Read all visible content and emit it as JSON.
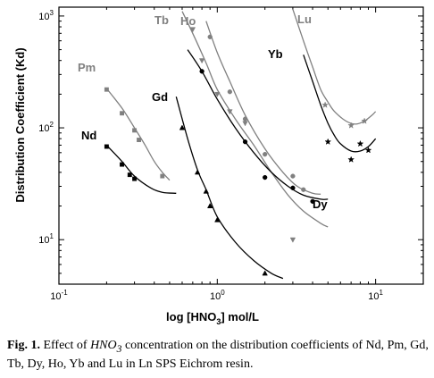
{
  "chart_data": {
    "type": "scatter",
    "xlabel_main": "log  [HNO",
    "xlabel_sub": "3",
    "xlabel_tail": "]     mol/L",
    "ylabel": "Distribution Coefficient  (Kd)",
    "x_scale": "log",
    "y_scale": "log",
    "xlim": [
      0.1,
      20
    ],
    "ylim": [
      4,
      1200
    ],
    "grid": false,
    "x_ticks": [
      {
        "value": 0.1,
        "base": "10",
        "exp": "-1"
      },
      {
        "value": 1,
        "base": "10",
        "exp": "0"
      },
      {
        "value": 10,
        "base": "10",
        "exp": "1"
      }
    ],
    "y_ticks": [
      {
        "value": 10,
        "base": "10",
        "exp": "1"
      },
      {
        "value": 100,
        "base": "10",
        "exp": "2"
      },
      {
        "value": 1000,
        "base": "10",
        "exp": "3"
      }
    ],
    "series": [
      {
        "name": "Nd",
        "color": "#000000",
        "marker": "square",
        "points": [
          [
            0.2,
            68
          ],
          [
            0.25,
            47
          ],
          [
            0.28,
            38
          ],
          [
            0.3,
            35
          ]
        ],
        "curve": [
          [
            0.2,
            70
          ],
          [
            0.25,
            50
          ],
          [
            0.3,
            37
          ],
          [
            0.38,
            29
          ],
          [
            0.45,
            26.5
          ],
          [
            0.55,
            26
          ]
        ]
      },
      {
        "name": "Pm",
        "color": "#808080",
        "marker": "square",
        "points": [
          [
            0.2,
            220
          ],
          [
            0.25,
            135
          ],
          [
            0.3,
            95
          ],
          [
            0.32,
            78
          ],
          [
            0.45,
            37
          ]
        ],
        "curve": [
          [
            0.2,
            225
          ],
          [
            0.25,
            150
          ],
          [
            0.3,
            100
          ],
          [
            0.35,
            70
          ],
          [
            0.4,
            50
          ],
          [
            0.45,
            40
          ],
          [
            0.5,
            34
          ]
        ]
      },
      {
        "name": "Gd",
        "color": "#000000",
        "marker": "triangle",
        "points": [
          [
            0.6,
            100
          ],
          [
            0.75,
            40
          ],
          [
            0.85,
            27
          ],
          [
            0.9,
            20
          ],
          [
            1.0,
            15
          ],
          [
            2.0,
            5
          ]
        ],
        "curve": [
          [
            0.55,
            190
          ],
          [
            0.65,
            80
          ],
          [
            0.75,
            42
          ],
          [
            0.85,
            28
          ],
          [
            1.0,
            16
          ],
          [
            1.3,
            9.5
          ],
          [
            1.7,
            6.5
          ],
          [
            2.2,
            5
          ],
          [
            2.6,
            4.5
          ]
        ]
      },
      {
        "name": "Tb",
        "color": "#808080",
        "marker": "triangle-down",
        "points": [
          [
            0.7,
            760
          ],
          [
            0.8,
            400
          ],
          [
            1.0,
            200
          ],
          [
            1.2,
            140
          ],
          [
            1.5,
            110
          ],
          [
            3.0,
            10
          ]
        ],
        "curve": [
          [
            0.6,
            1100
          ],
          [
            0.7,
            700
          ],
          [
            0.85,
            380
          ],
          [
            1.0,
            220
          ],
          [
            1.3,
            120
          ],
          [
            1.7,
            70
          ],
          [
            2.2,
            40
          ],
          [
            2.8,
            25
          ],
          [
            3.5,
            18
          ],
          [
            4.5,
            14
          ],
          [
            5.0,
            13
          ]
        ]
      },
      {
        "name": "Ho",
        "color": "#808080",
        "marker": "circle",
        "points": [
          [
            0.9,
            650
          ],
          [
            1.2,
            210
          ],
          [
            1.5,
            120
          ],
          [
            2.0,
            58
          ],
          [
            3.0,
            37
          ],
          [
            3.5,
            28
          ]
        ],
        "curve": [
          [
            0.85,
            900
          ],
          [
            1.0,
            470
          ],
          [
            1.2,
            260
          ],
          [
            1.5,
            130
          ],
          [
            2.0,
            65
          ],
          [
            2.6,
            40
          ],
          [
            3.2,
            30
          ],
          [
            4.0,
            26
          ],
          [
            4.5,
            25.5
          ]
        ]
      },
      {
        "name": "Dy",
        "color": "#000000",
        "marker": "circle",
        "points": [
          [
            0.8,
            320
          ],
          [
            1.5,
            75
          ],
          [
            2.0,
            36
          ],
          [
            3.0,
            29
          ],
          [
            4.0,
            22
          ]
        ],
        "curve": [
          [
            0.65,
            500
          ],
          [
            0.8,
            320
          ],
          [
            1.0,
            180
          ],
          [
            1.3,
            100
          ],
          [
            1.7,
            60
          ],
          [
            2.2,
            40
          ],
          [
            2.8,
            30
          ],
          [
            3.5,
            25
          ],
          [
            4.5,
            23
          ],
          [
            5.0,
            23
          ]
        ]
      },
      {
        "name": "Yb",
        "color": "#000000",
        "marker": "star",
        "points": [
          [
            5.0,
            75
          ],
          [
            7.0,
            52
          ],
          [
            8.0,
            72
          ],
          [
            9.0,
            63
          ]
        ],
        "curve": [
          [
            3.5,
            450
          ],
          [
            4.0,
            260
          ],
          [
            4.5,
            160
          ],
          [
            5.0,
            110
          ],
          [
            5.5,
            85
          ],
          [
            6.0,
            72
          ],
          [
            7.0,
            62
          ],
          [
            8.0,
            62
          ],
          [
            9.0,
            68
          ],
          [
            10.0,
            80
          ]
        ]
      },
      {
        "name": "Lu",
        "color": "#808080",
        "marker": "star",
        "points": [
          [
            4.8,
            160
          ],
          [
            7.0,
            105
          ],
          [
            8.5,
            115
          ]
        ],
        "curve": [
          [
            3.0,
            1150
          ],
          [
            3.5,
            600
          ],
          [
            4.0,
            350
          ],
          [
            4.5,
            220
          ],
          [
            5.0,
            170
          ],
          [
            5.5,
            140
          ],
          [
            6.5,
            115
          ],
          [
            7.5,
            108
          ],
          [
            8.5,
            115
          ],
          [
            9.5,
            130
          ],
          [
            10.0,
            140
          ]
        ]
      }
    ]
  },
  "caption": {
    "fig_label": "Fig. 1.",
    "text_1": " Effect of ",
    "chem": "HNO",
    "chem_sub": "3",
    "text_2": " concentration on the distribution coefficients of Nd, Pm, Gd, Tb, Dy, Ho, Yb and Lu in Ln SPS Eichrom resin."
  }
}
